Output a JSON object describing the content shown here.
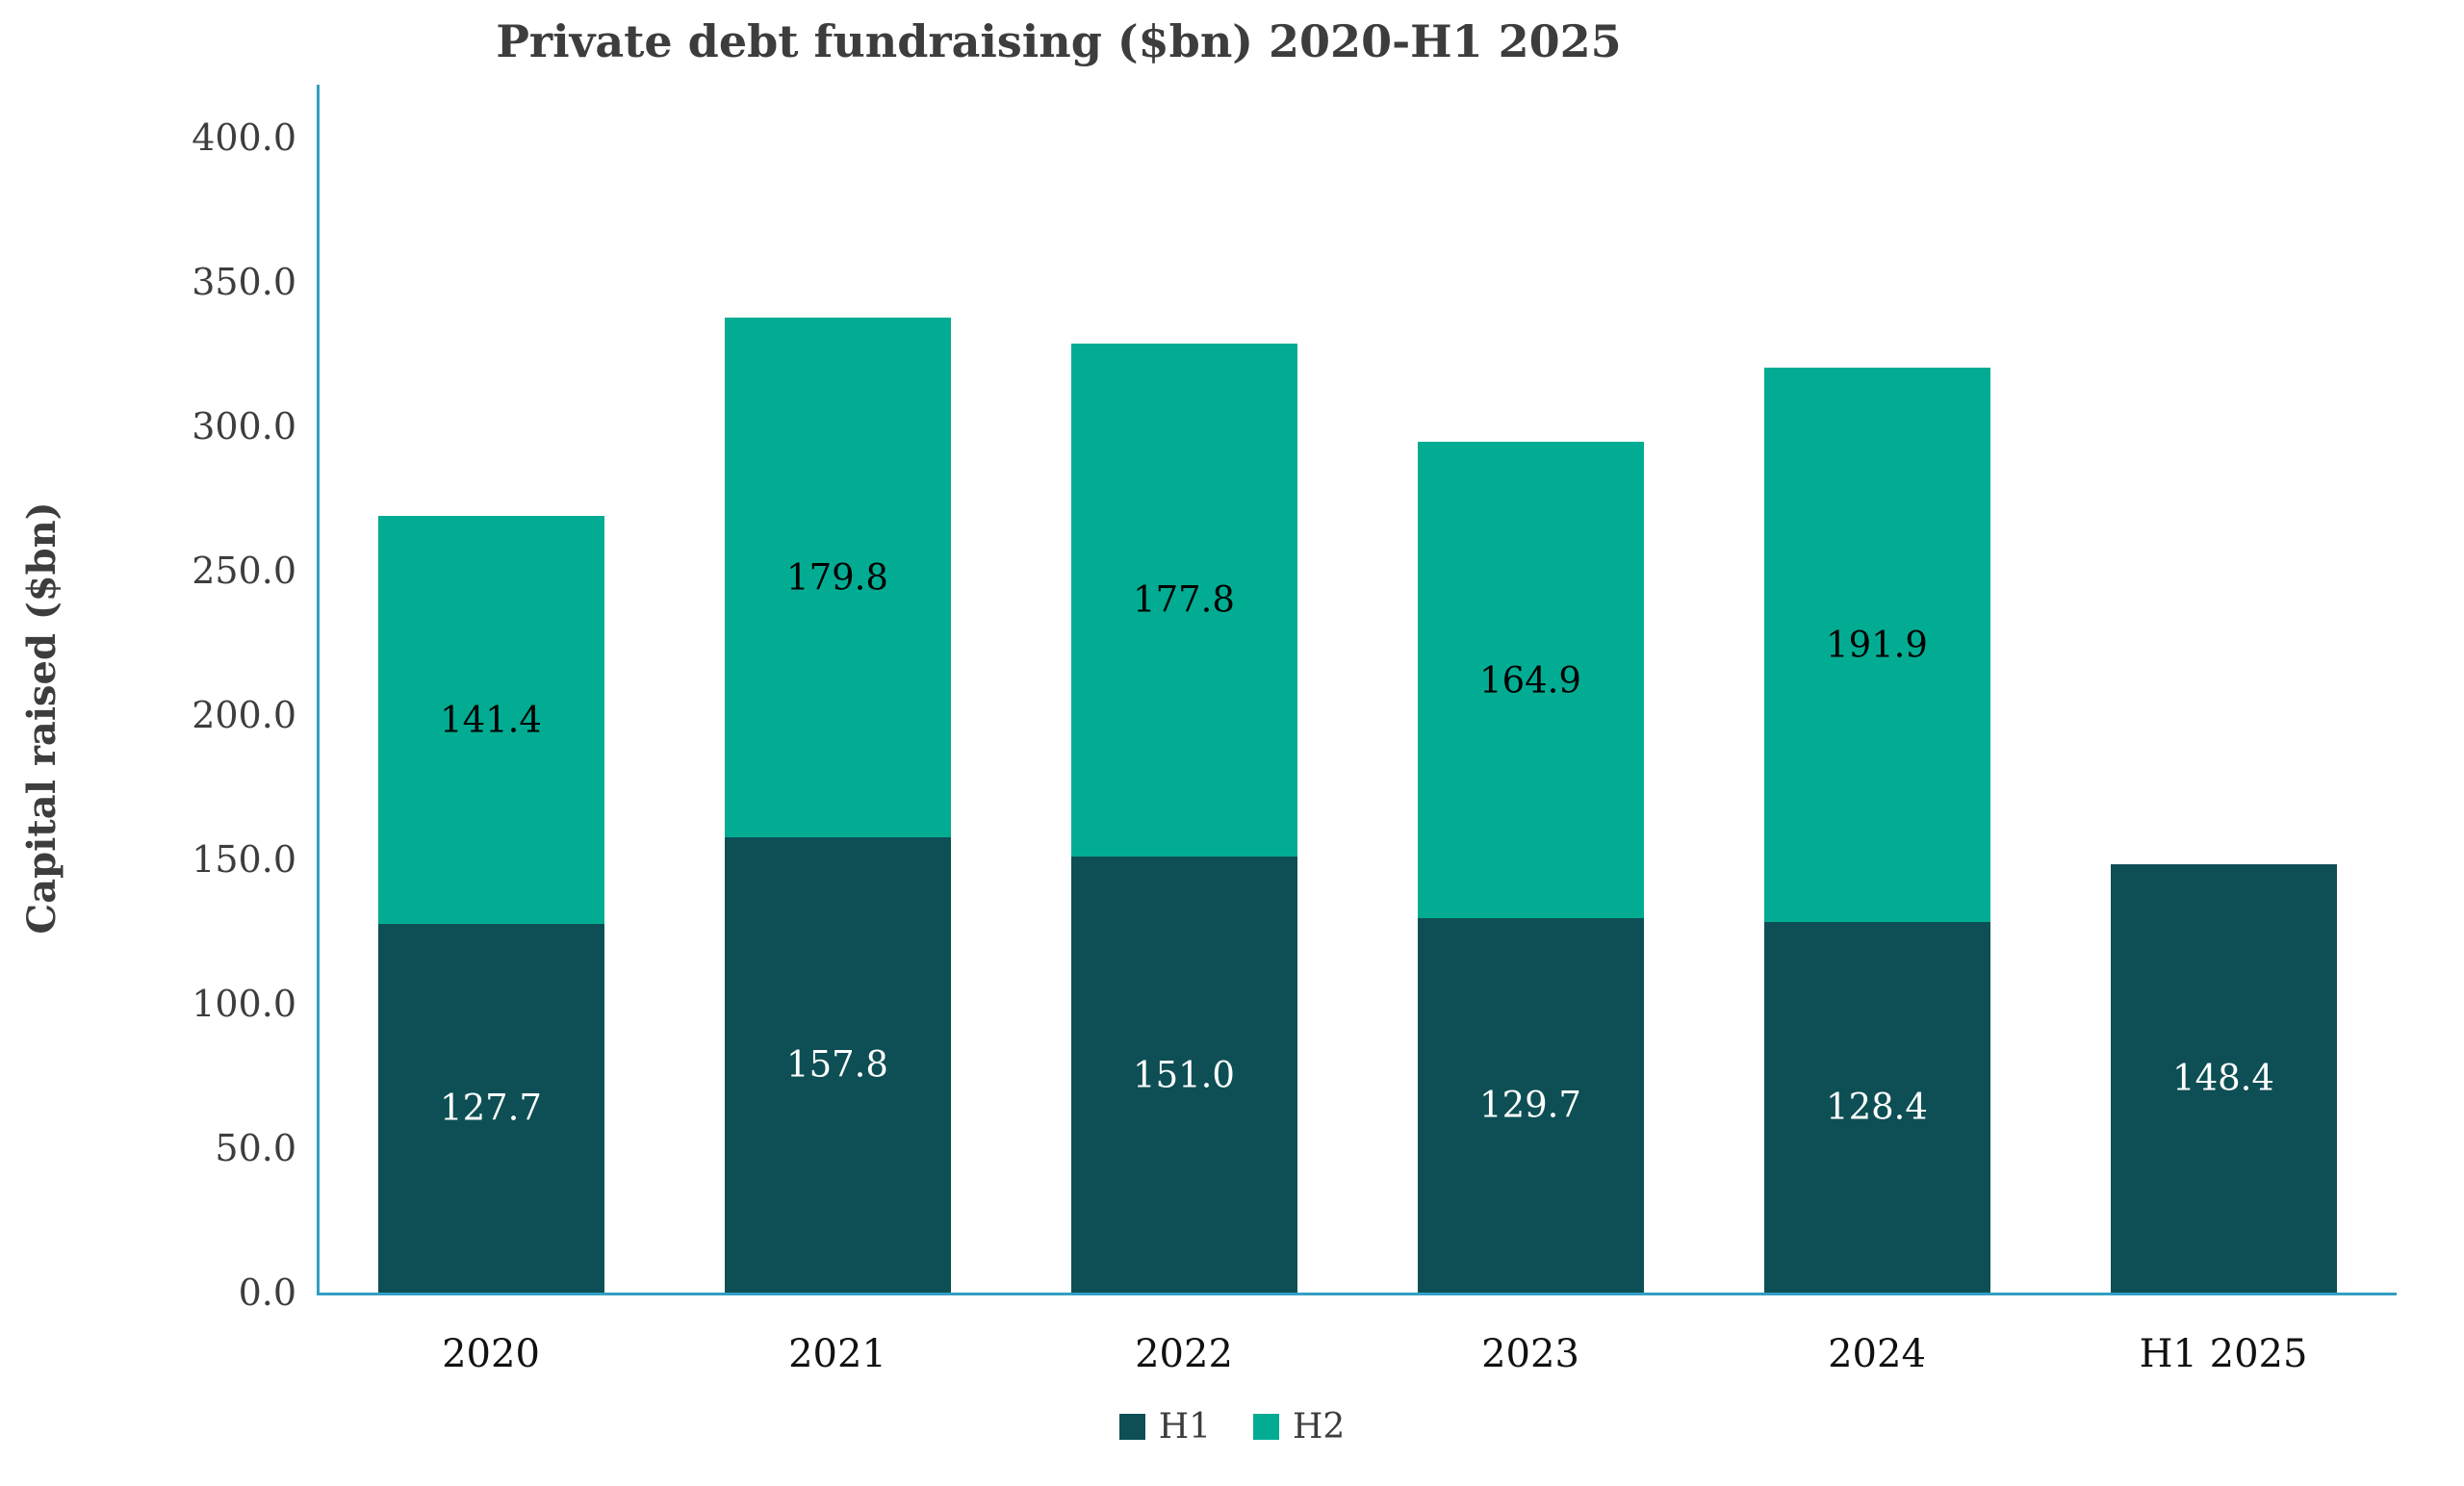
{
  "title": "Private debt fundraising ($bn) 2020-H1 2025",
  "chart_data": {
    "type": "bar",
    "stacked": true,
    "title": "Private debt fundraising ($bn) 2020-H1 2025",
    "xlabel": "",
    "ylabel": "Capital raised ($bn)",
    "ylim": [
      0,
      400
    ],
    "ytick_step": 50,
    "ytick_labels": [
      "400.0",
      "350.0",
      "300.0",
      "250.0",
      "200.0",
      "150.0",
      "100.0",
      "50.0",
      "0.0"
    ],
    "grid": false,
    "legend_position": "bottom",
    "categories": [
      "2020",
      "2021",
      "2022",
      "2023",
      "2024",
      "H1 2025"
    ],
    "series": [
      {
        "name": "H1",
        "color": "#0d4f54",
        "label_color": "#ffffff",
        "values": [
          127.7,
          157.8,
          151.0,
          129.7,
          128.4,
          148.4
        ]
      },
      {
        "name": "H2",
        "color": "#02ac93",
        "label_color": "#000000",
        "values": [
          141.4,
          179.8,
          177.8,
          164.9,
          191.9,
          null
        ]
      }
    ],
    "totals": [
      269.1,
      337.6,
      328.8,
      294.6,
      320.3,
      148.4
    ],
    "axis_color": "#339fc4",
    "text_color": "#3d3d3d"
  }
}
